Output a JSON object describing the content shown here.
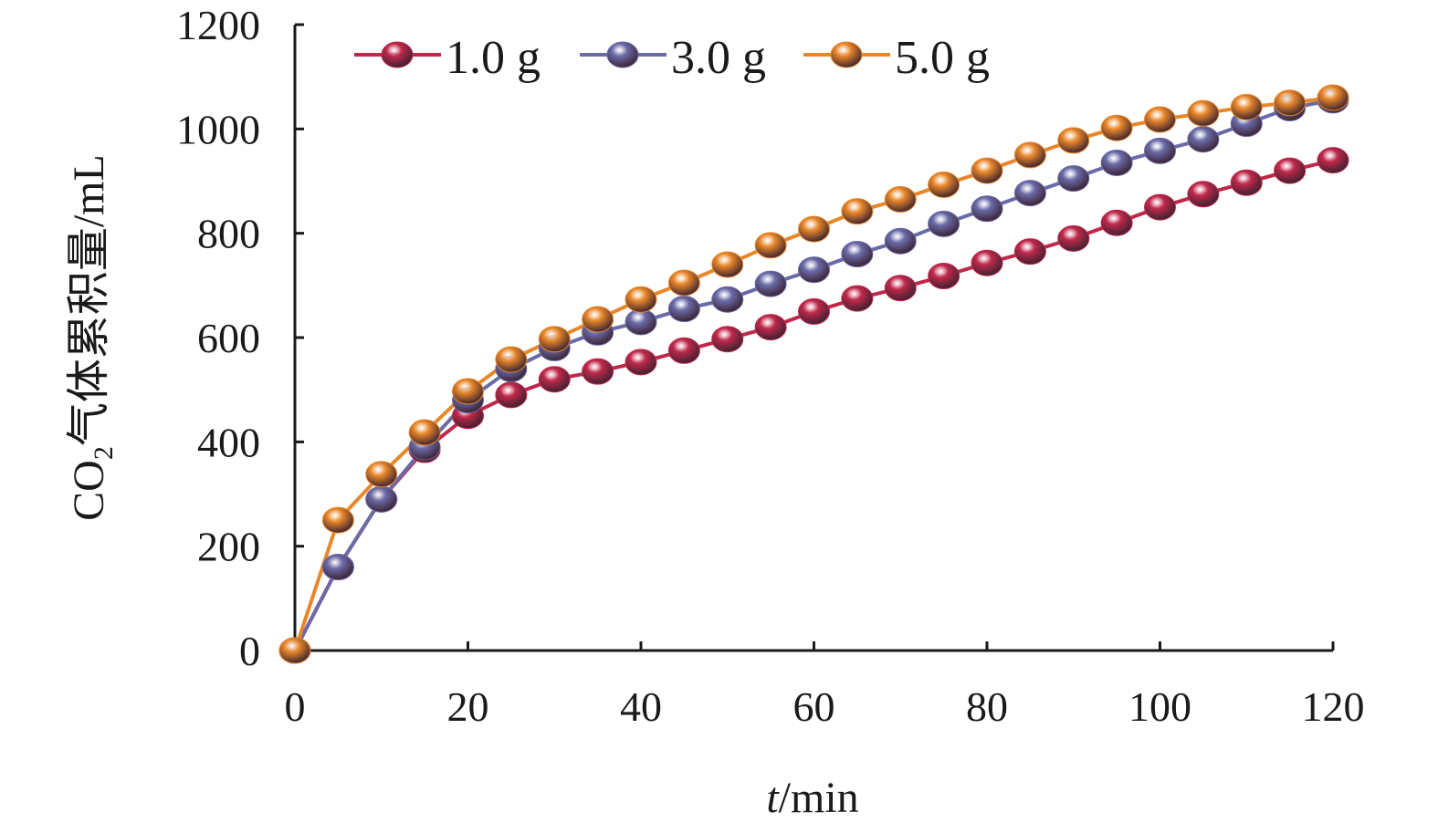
{
  "chart_data": {
    "type": "line",
    "xlabel_italic": "t",
    "xlabel_rest": "/min",
    "ylabel_prefix": "CO",
    "ylabel_sub": "2",
    "ylabel_rest": "气体累积量/mL",
    "xlim": [
      0,
      120
    ],
    "ylim": [
      0,
      1200
    ],
    "xticks": [
      0,
      20,
      40,
      60,
      80,
      100,
      120
    ],
    "yticks": [
      0,
      200,
      400,
      600,
      800,
      1000,
      1200
    ],
    "grid": false,
    "legend_position": "top",
    "x": [
      0,
      5,
      10,
      15,
      20,
      25,
      30,
      35,
      40,
      45,
      50,
      55,
      60,
      65,
      70,
      75,
      80,
      85,
      90,
      95,
      100,
      105,
      110,
      115,
      120
    ],
    "series": [
      {
        "name": "1.0 g",
        "color": "#c0284a",
        "values": [
          0,
          160,
          290,
          385,
          450,
          490,
          520,
          535,
          553,
          575,
          597,
          620,
          650,
          675,
          695,
          718,
          743,
          765,
          790,
          820,
          850,
          875,
          897,
          920,
          940
        ]
      },
      {
        "name": "3.0 g",
        "color": "#6a6aa8",
        "values": [
          0,
          160,
          290,
          390,
          480,
          540,
          580,
          610,
          630,
          655,
          673,
          703,
          730,
          760,
          785,
          818,
          847,
          877,
          905,
          935,
          958,
          980,
          1010,
          1040,
          1055
        ]
      },
      {
        "name": "5.0 g",
        "color": "#e8872a",
        "values": [
          0,
          250,
          338,
          418,
          497,
          558,
          597,
          635,
          673,
          705,
          740,
          777,
          808,
          842,
          865,
          893,
          920,
          950,
          978,
          1002,
          1018,
          1030,
          1042,
          1050,
          1060
        ]
      }
    ]
  }
}
